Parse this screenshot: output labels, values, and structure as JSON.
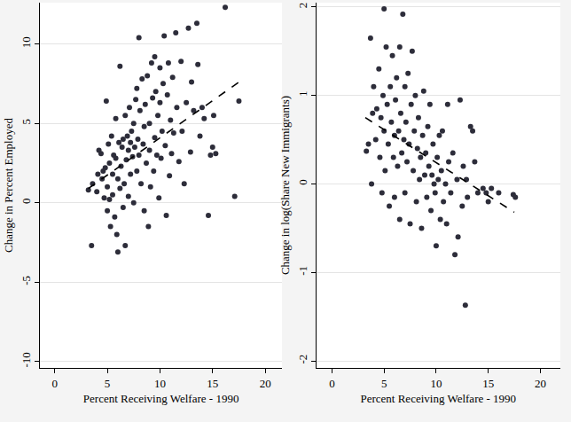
{
  "chart_data": [
    {
      "type": "scatter",
      "x_label": "Percent Receiving Welfare - 1990",
      "y_label": "Change in Percent Employed",
      "xlim": [
        -1.4,
        21.6
      ],
      "xticks": [
        0,
        5,
        10,
        15,
        20
      ],
      "ylim": [
        -10.4,
        12.6
      ],
      "yticks": [
        -10,
        -5,
        0,
        5,
        10
      ],
      "grid": "y",
      "series": [
        {
          "type": "scatter",
          "color": "#2d2d3a",
          "marker": "circle",
          "x": [
            3.2,
            3.5,
            3.6,
            4.0,
            4.1,
            4.2,
            4.4,
            4.5,
            4.6,
            4.7,
            4.8,
            4.9,
            5.0,
            5.0,
            5.1,
            5.2,
            5.2,
            5.3,
            5.4,
            5.5,
            5.5,
            5.6,
            5.7,
            5.8,
            5.8,
            5.9,
            6.0,
            6.0,
            6.1,
            6.2,
            6.2,
            6.3,
            6.4,
            6.5,
            6.5,
            6.6,
            6.7,
            6.7,
            6.8,
            6.9,
            7.0,
            7.0,
            7.1,
            7.2,
            7.2,
            7.3,
            7.4,
            7.5,
            7.5,
            7.6,
            7.7,
            7.8,
            7.8,
            7.9,
            8.0,
            8.0,
            8.1,
            8.2,
            8.3,
            8.4,
            8.5,
            8.5,
            8.6,
            8.7,
            8.8,
            8.9,
            9.0,
            9.0,
            9.1,
            9.2,
            9.3,
            9.4,
            9.5,
            9.5,
            9.6,
            9.7,
            9.8,
            9.9,
            10.0,
            10.0,
            10.1,
            10.2,
            10.3,
            10.4,
            10.5,
            10.6,
            10.7,
            10.8,
            10.9,
            11.0,
            11.1,
            11.2,
            11.3,
            11.5,
            11.6,
            11.8,
            12.0,
            12.1,
            12.3,
            12.5,
            12.7,
            12.9,
            13.0,
            13.2,
            13.5,
            13.6,
            13.8,
            14.0,
            14.2,
            14.6,
            14.8,
            15.0,
            15.1,
            15.3,
            16.2,
            17.1,
            17.5
          ],
          "values": [
            0.8,
            -2.7,
            1.2,
            0.7,
            1.8,
            3.3,
            3.1,
            1.5,
            2.0,
            0.3,
            2.2,
            6.4,
            1.0,
            -0.5,
            3.7,
            2.5,
            0.2,
            -1.5,
            4.2,
            1.8,
            0.5,
            3.0,
            -0.9,
            2.8,
            5.3,
            -2.0,
            -3.1,
            1.5,
            3.8,
            8.6,
            0.9,
            2.3,
            3.5,
            -0.3,
            4.0,
            1.2,
            -2.7,
            5.5,
            2.7,
            4.2,
            3.3,
            0.4,
            6.0,
            3.8,
            1.8,
            4.5,
            2.9,
            5.0,
            0.0,
            3.5,
            6.5,
            2.0,
            7.2,
            4.0,
            10.4,
            3.0,
            5.8,
            1.2,
            7.8,
            3.7,
            4.8,
            -0.5,
            6.2,
            2.5,
            8.0,
            -1.5,
            3.3,
            5.0,
            1.0,
            8.8,
            6.6,
            2.0,
            9.2,
            4.1,
            7.0,
            3.0,
            5.5,
            0.3,
            8.5,
            6.3,
            2.8,
            4.5,
            7.5,
            10.5,
            3.6,
            -0.8,
            6.8,
            8.8,
            1.7,
            5.2,
            3.1,
            7.9,
            4.4,
            10.7,
            6.0,
            2.6,
            8.9,
            4.5,
            1.2,
            6.3,
            11.0,
            3.2,
            7.6,
            5.8,
            11.3,
            8.7,
            4.2,
            6.0,
            5.3,
            -0.8,
            3.0,
            3.5,
            5.5,
            3.1,
            12.3,
            0.4,
            6.4
          ]
        },
        {
          "type": "line",
          "color": "#000000",
          "line_style": "dashed",
          "x": [
            3.2,
            17.5
          ],
          "values": [
            0.9,
            7.6
          ]
        }
      ]
    },
    {
      "type": "scatter",
      "x_label": "Percent Receiving Welfare - 1990",
      "y_label": "Change in log(Share New Immigrants)",
      "xlim": [
        -1.5,
        21.9
      ],
      "xticks": [
        0,
        5,
        10,
        15,
        20
      ],
      "ylim": [
        -2.08,
        2.05
      ],
      "yticks": [
        -2,
        -1,
        0,
        1,
        2
      ],
      "grid": "y",
      "series": [
        {
          "type": "scatter",
          "color": "#2d2d3a",
          "marker": "circle",
          "x": [
            3.3,
            3.5,
            3.7,
            3.8,
            3.9,
            4.0,
            4.2,
            4.3,
            4.5,
            4.6,
            4.7,
            4.8,
            4.9,
            5.0,
            5.0,
            5.1,
            5.2,
            5.3,
            5.4,
            5.5,
            5.6,
            5.7,
            5.8,
            5.9,
            6.0,
            6.0,
            6.1,
            6.2,
            6.3,
            6.4,
            6.5,
            6.5,
            6.6,
            6.7,
            6.8,
            6.9,
            7.0,
            7.0,
            7.1,
            7.2,
            7.3,
            7.4,
            7.5,
            7.6,
            7.7,
            7.8,
            7.9,
            8.0,
            8.1,
            8.2,
            8.3,
            8.4,
            8.5,
            8.6,
            8.7,
            8.8,
            8.9,
            9.0,
            9.1,
            9.2,
            9.3,
            9.4,
            9.5,
            9.6,
            9.7,
            9.8,
            9.9,
            10.0,
            10.1,
            10.2,
            10.3,
            10.4,
            10.5,
            10.6,
            10.7,
            10.9,
            11.0,
            11.1,
            11.2,
            11.4,
            11.6,
            11.8,
            12.0,
            12.1,
            12.3,
            12.5,
            12.6,
            12.8,
            12.9,
            13.0,
            13.3,
            13.5,
            13.7,
            14.0,
            14.5,
            14.8,
            15.0,
            15.3,
            16.0,
            17.4,
            17.6
          ],
          "values": [
            0.37,
            0.45,
            1.65,
            0.0,
            0.8,
            1.1,
            0.5,
            0.85,
            1.3,
            0.3,
            0.75,
            -0.1,
            1.0,
            1.98,
            0.6,
            0.15,
            1.55,
            0.9,
            0.45,
            -0.25,
            1.1,
            0.7,
            1.45,
            0.3,
            0.55,
            -0.15,
            0.95,
            1.2,
            0.2,
            0.6,
            1.55,
            -0.4,
            0.8,
            0.35,
            1.92,
            0.5,
            1.1,
            -0.1,
            0.7,
            0.25,
            1.25,
            0.45,
            -0.45,
            0.9,
            1.5,
            0.15,
            0.6,
            1.0,
            -0.2,
            0.4,
            0.75,
            0.05,
            0.3,
            -0.5,
            0.55,
            1.05,
            0.1,
            0.35,
            -0.15,
            0.65,
            0.2,
            0.9,
            -0.3,
            0.1,
            0.45,
            0.0,
            -0.1,
            -0.7,
            0.3,
            0.05,
            0.55,
            -0.4,
            0.15,
            0.6,
            -0.2,
            0.0,
            -0.45,
            0.9,
            0.25,
            -0.1,
            0.35,
            -0.8,
            0.05,
            -0.6,
            0.95,
            -0.25,
            0.2,
            -1.37,
            0.05,
            -0.15,
            0.65,
            0.6,
            0.25,
            -0.1,
            -0.05,
            -0.1,
            -0.2,
            -0.05,
            -0.1,
            -0.12,
            -0.15
          ]
        },
        {
          "type": "line",
          "color": "#000000",
          "line_style": "dashed",
          "x": [
            3.2,
            17.5
          ],
          "values": [
            0.75,
            -0.32
          ]
        }
      ]
    }
  ]
}
